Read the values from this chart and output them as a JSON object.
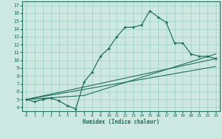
{
  "xlabel": "Humidex (Indice chaleur)",
  "xlim": [
    -0.5,
    23.5
  ],
  "ylim": [
    3.5,
    17.5
  ],
  "xticks": [
    0,
    1,
    2,
    3,
    4,
    5,
    6,
    7,
    8,
    9,
    10,
    11,
    12,
    13,
    14,
    15,
    16,
    17,
    18,
    19,
    20,
    21,
    22,
    23
  ],
  "yticks": [
    4,
    5,
    6,
    7,
    8,
    9,
    10,
    11,
    12,
    13,
    14,
    15,
    16,
    17
  ],
  "bg_color": "#cce8e0",
  "grid_color": "#99ccc0",
  "line_color": "#1a6b5a",
  "line1_x": [
    0,
    1,
    2,
    3,
    4,
    5,
    6,
    7,
    8,
    9,
    10,
    11,
    12,
    13,
    14,
    15,
    16,
    17,
    18,
    19,
    20,
    21,
    22,
    23
  ],
  "line1_y": [
    5.0,
    4.7,
    5.0,
    5.2,
    4.8,
    4.2,
    3.8,
    7.2,
    8.5,
    10.5,
    11.5,
    13.0,
    14.2,
    14.2,
    14.5,
    16.3,
    15.5,
    14.8,
    12.2,
    12.2,
    10.8,
    10.5,
    10.5,
    10.2
  ],
  "line2_x": [
    0,
    23
  ],
  "line2_y": [
    5.0,
    10.2
  ],
  "line3_x": [
    0,
    23
  ],
  "line3_y": [
    5.0,
    9.2
  ],
  "line4_x": [
    0,
    7,
    23
  ],
  "line4_y": [
    5.0,
    5.5,
    10.8
  ]
}
